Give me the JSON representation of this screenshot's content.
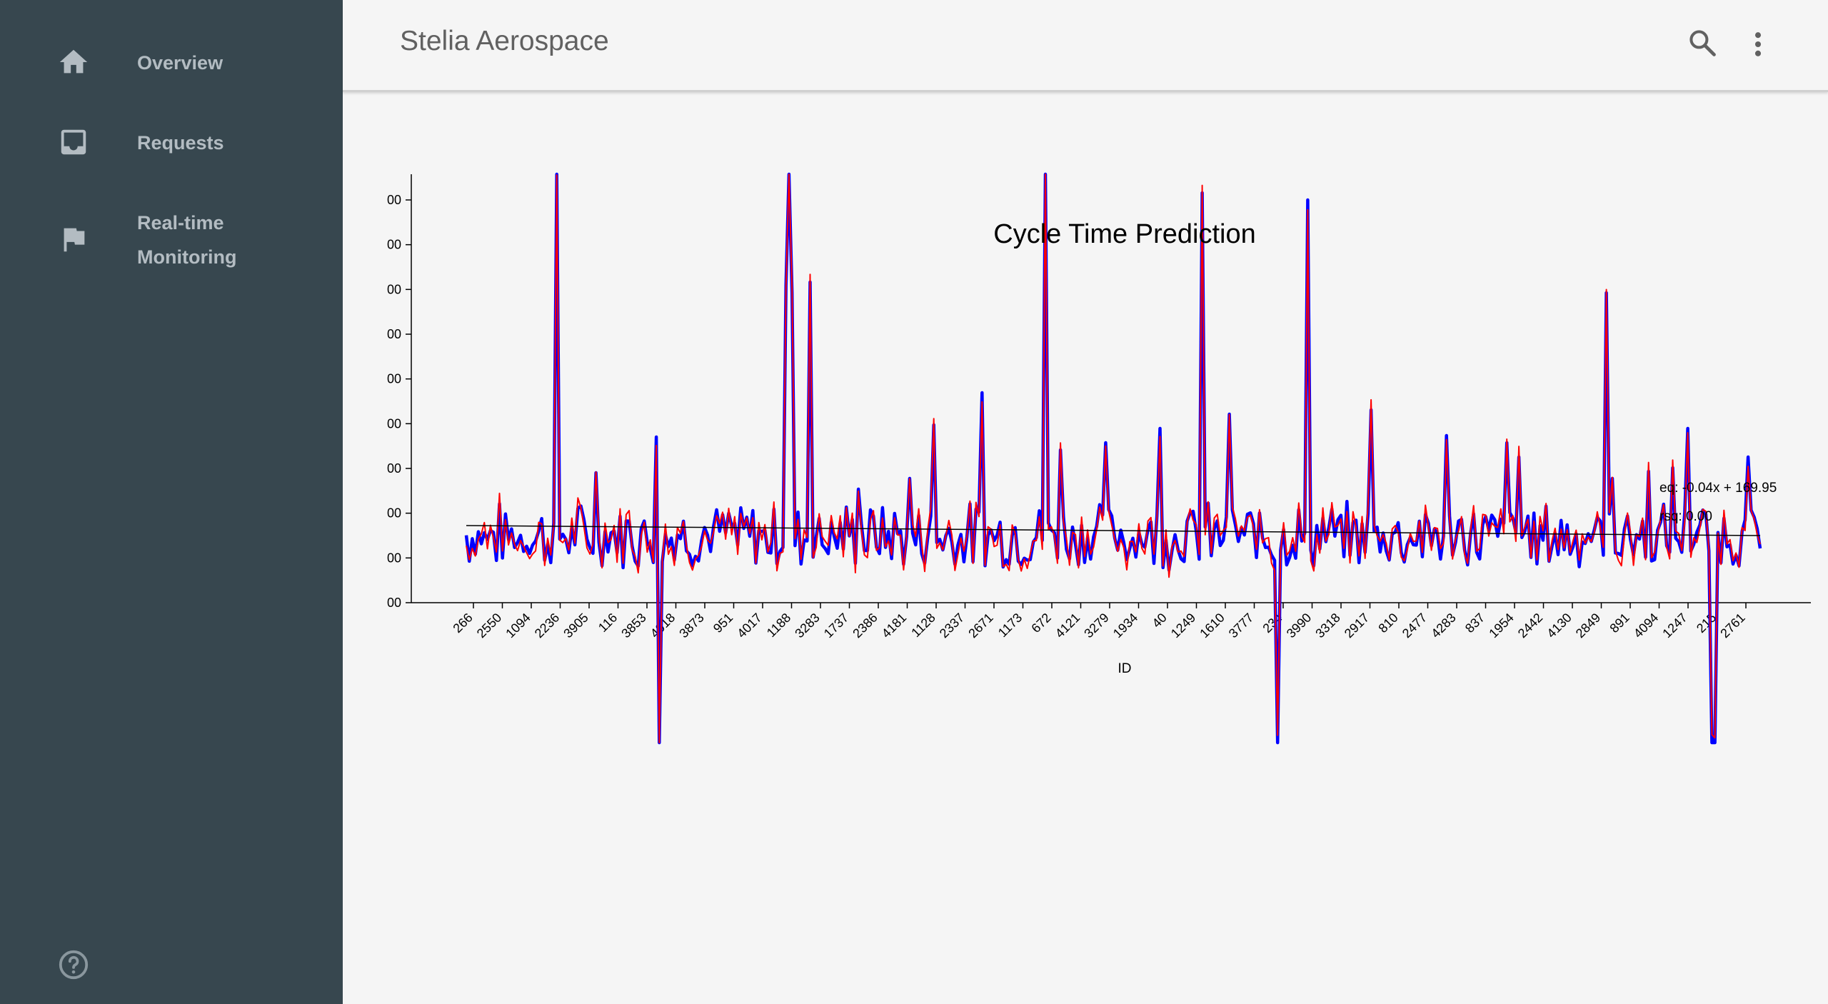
{
  "app": {
    "title": "Stelia Aerospace"
  },
  "sidebar": {
    "items": [
      {
        "label": "Overview",
        "icon": "home-icon"
      },
      {
        "label": "Requests",
        "icon": "inbox-icon"
      },
      {
        "label_line1": "Real-time",
        "label_line2": "Monitoring",
        "icon": "flag-icon"
      }
    ],
    "help_icon": "help-circle-icon"
  },
  "header": {
    "search_icon": "search-icon",
    "more_icon": "more-vert-icon"
  },
  "colors": {
    "sidebar": "#37474f",
    "actual": "#0000ff",
    "predicted": "#ff0000",
    "trend": "#000000"
  },
  "chart_data": {
    "type": "line",
    "title": "Cycle Time Prediction",
    "xlabel": "ID",
    "ylabel": "",
    "y_tick_labels": [
      "00",
      "00",
      "00",
      "00",
      "00",
      "00",
      "00",
      "00",
      "00",
      "00"
    ],
    "categories": [
      "266",
      "2550",
      "1094",
      "2236",
      "3905",
      "116",
      "3853",
      "4018",
      "3873",
      "951",
      "4017",
      "1188",
      "3283",
      "1737",
      "2386",
      "4181",
      "1128",
      "2337",
      "2671",
      "1173",
      "672",
      "4121",
      "3279",
      "1934",
      "40",
      "1249",
      "1610",
      "3777",
      "234",
      "3990",
      "3318",
      "2917",
      "810",
      "2477",
      "4283",
      "837",
      "1954",
      "2442",
      "4130",
      "2849",
      "891",
      "4094",
      "1247",
      "215",
      "2761"
    ],
    "annotations": {
      "equation": "eq: -0.04x + 169.95",
      "r2": "rsq: 0.00"
    },
    "series": [
      {
        "key": "actual"
      },
      {
        "key": "predicted"
      }
    ]
  }
}
